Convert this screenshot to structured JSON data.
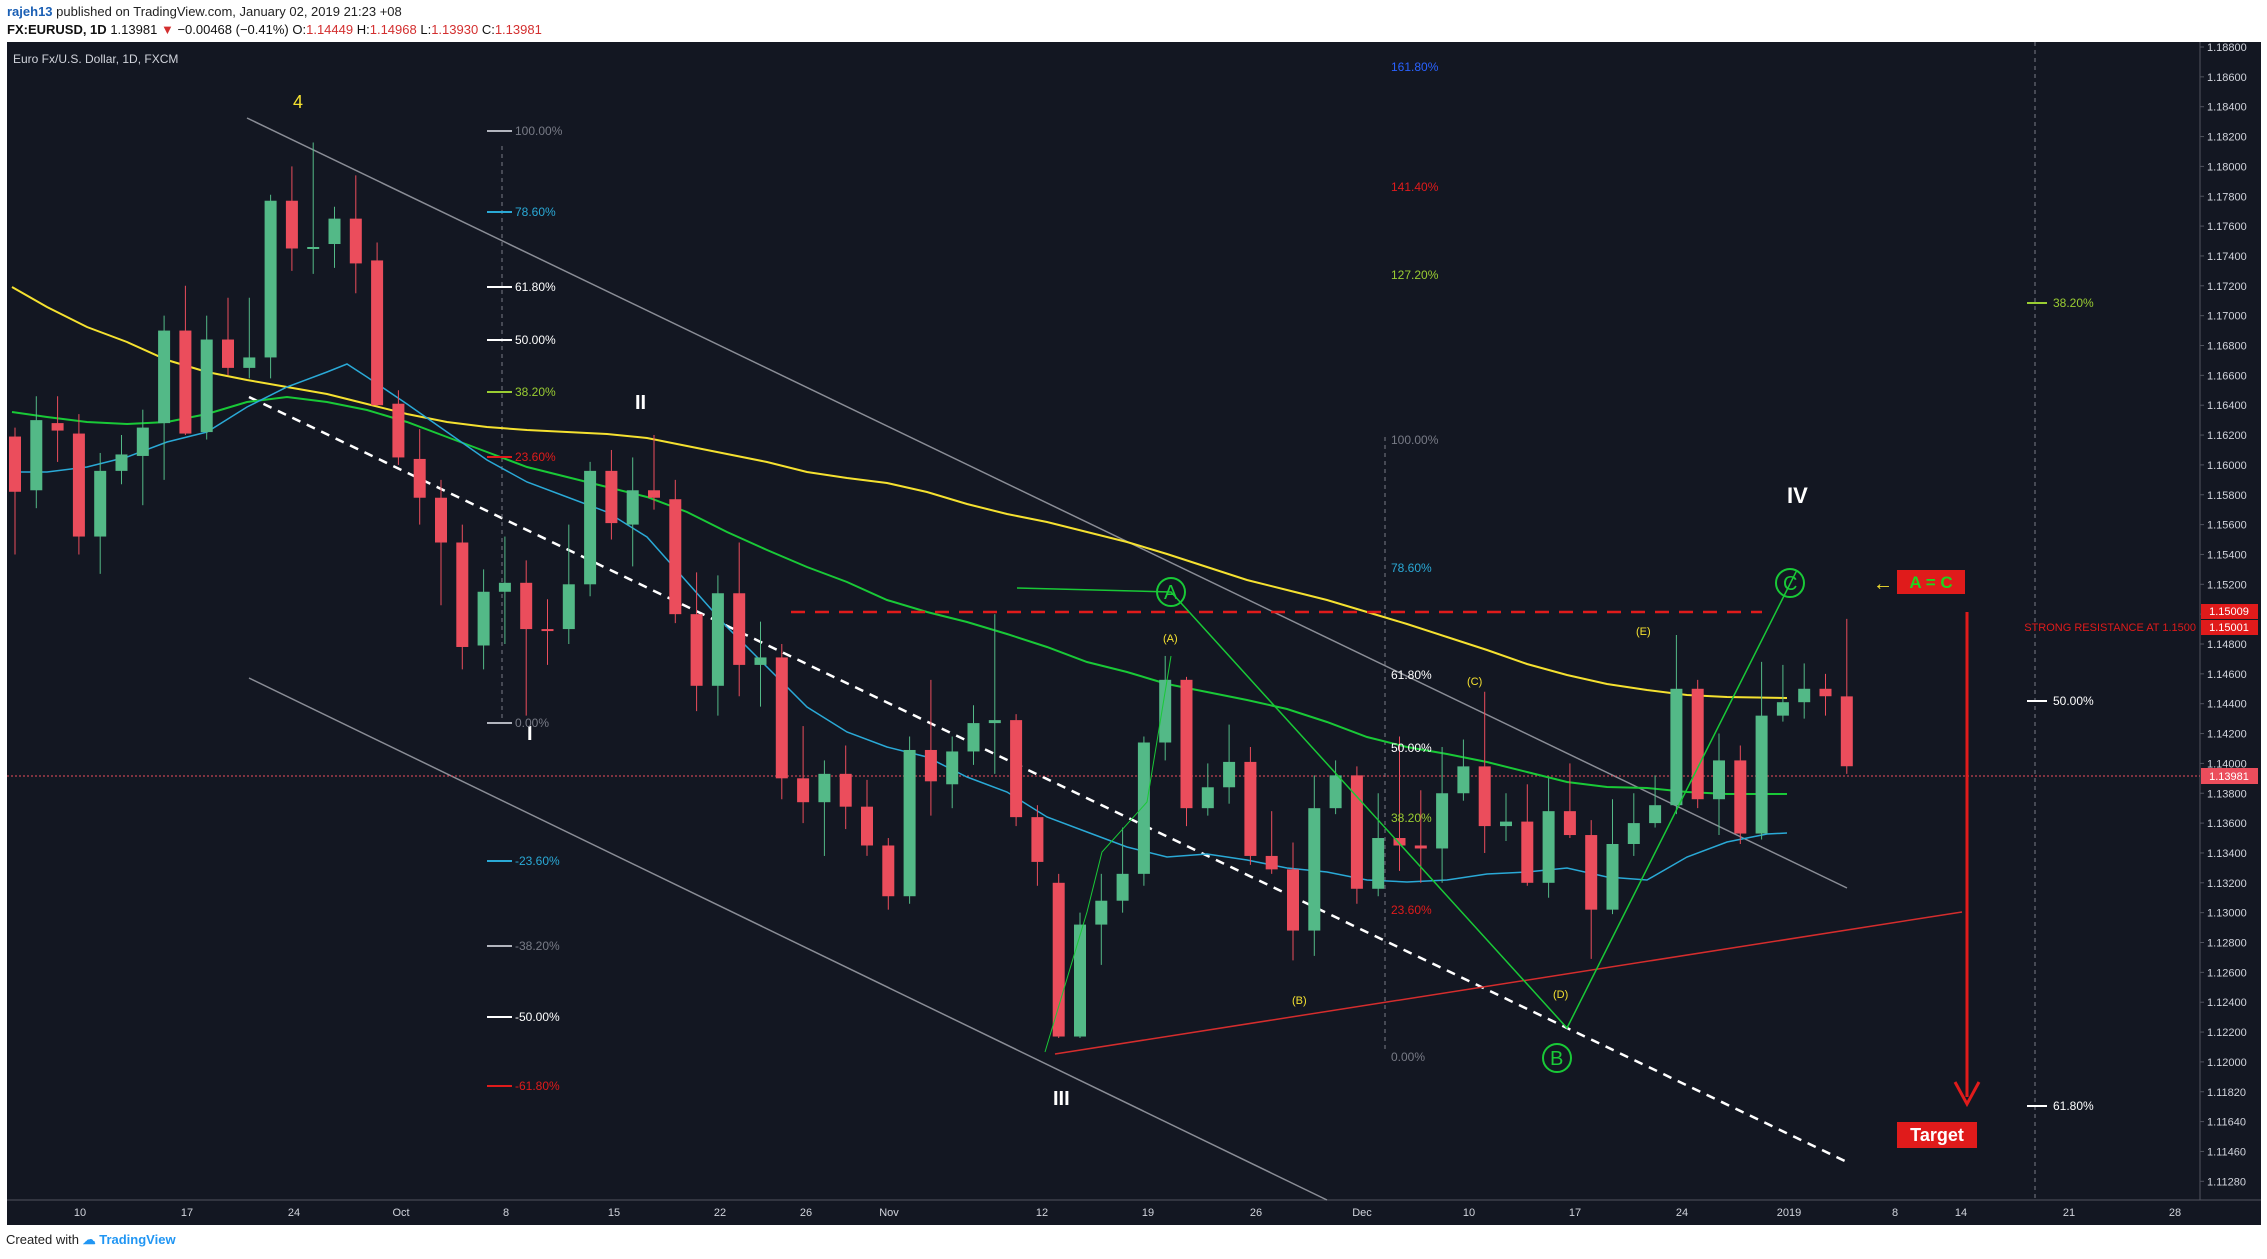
{
  "header": {
    "author": "rajeh13",
    "published": "published on TradingView.com, January 02, 2019 21:23 +08",
    "symbol": "FX:EURUSD, 1D",
    "price": "1.13981",
    "arrow": "▼",
    "change": "−0.00468 (−0.41%)",
    "o_label": "O:",
    "o": "1.14449",
    "h_label": "H:",
    "h": "1.14968",
    "l_label": "L:",
    "l": "1.13930",
    "c_label": "C:",
    "c": "1.13981"
  },
  "chart": {
    "title": "Euro Fx/U.S. Dollar, 1D, FXCM",
    "price_axis": [
      "1.18800",
      "1.18600",
      "1.18400",
      "1.18200",
      "1.18000",
      "1.17800",
      "1.17600",
      "1.17400",
      "1.17200",
      "1.17000",
      "1.16800",
      "1.16600",
      "1.16400",
      "1.16200",
      "1.16000",
      "1.15800",
      "1.15600",
      "1.15400",
      "1.15200",
      "1.15000",
      "1.14800",
      "1.14600",
      "1.14400",
      "1.14200",
      "1.14000",
      "1.13800",
      "1.13600",
      "1.13400",
      "1.13200",
      "1.13000",
      "1.12800",
      "1.12600",
      "1.12400",
      "1.12200",
      "1.12000",
      "1.11820",
      "1.11640",
      "1.11460",
      "1.11280"
    ],
    "price_tags": {
      "last": "1.13981",
      "res1": "1.15009",
      "res2": "1.15001"
    },
    "date_axis": [
      "10",
      "17",
      "24",
      "Oct",
      "8",
      "15",
      "22",
      "26",
      "Nov",
      "12",
      "19",
      "26",
      "Dec",
      "10",
      "17",
      "24",
      "2019",
      "8",
      "14",
      "21",
      "28"
    ],
    "annotations": {
      "wave_4": "4",
      "wave_I": "I",
      "wave_II": "II",
      "wave_III": "III",
      "wave_IV": "IV",
      "wave_A": "A",
      "wave_B": "B",
      "wave_C": "C",
      "sub_A": "(A)",
      "sub_B": "(B)",
      "sub_C": "(C)",
      "sub_D": "(D)",
      "sub_E": "(E)",
      "a_eq_c": "A = C",
      "a_eq_c_arrow": "←",
      "resistance": "STRONG RESISTANCE AT 1.1500",
      "target": "Target"
    },
    "fib_left": [
      "100.00%",
      "78.60%",
      "61.80%",
      "50.00%",
      "38.20%",
      "23.60%",
      "0.00%",
      "-23.60%",
      "-38.20%",
      "-50.00%",
      "-61.80%"
    ],
    "fib_right": [
      "161.80%",
      "141.40%",
      "127.20%",
      "100.00%",
      "78.60%",
      "61.80%",
      "50.00%",
      "38.20%",
      "23.60%",
      "0.00%"
    ],
    "fib_far": [
      "38.20%",
      "50.00%",
      "61.80%"
    ],
    "colors": {
      "background": "#131722",
      "up": "#53b987",
      "down": "#eb4d5c",
      "ma_yellow": "#f5e130",
      "ma_green": "#19c937",
      "ma_blue": "#2aa9d6",
      "red_line": "#e01b1b",
      "target_bg": "#e01b1b",
      "ac_bg": "#e01b1b",
      "ac_text": "#1ed41e"
    }
  },
  "chart_data": {
    "type": "candlestick",
    "title": "Euro Fx/U.S. Dollar, 1D, FXCM",
    "ylim": [
      1.1128,
      1.189
    ],
    "candles": [
      {
        "x": "2018-09-04",
        "o": 1.1619,
        "h": 1.1625,
        "l": 1.154,
        "c": 1.1582
      },
      {
        "x": "2018-09-05",
        "o": 1.1583,
        "h": 1.1646,
        "l": 1.1571,
        "c": 1.163
      },
      {
        "x": "2018-09-06",
        "o": 1.1628,
        "h": 1.1646,
        "l": 1.1602,
        "c": 1.1623
      },
      {
        "x": "2018-09-07",
        "o": 1.1621,
        "h": 1.1634,
        "l": 1.154,
        "c": 1.1552
      },
      {
        "x": "2018-09-10",
        "o": 1.1552,
        "h": 1.1608,
        "l": 1.1527,
        "c": 1.1596
      },
      {
        "x": "2018-09-11",
        "o": 1.1596,
        "h": 1.162,
        "l": 1.1587,
        "c": 1.1607
      },
      {
        "x": "2018-09-12",
        "o": 1.1606,
        "h": 1.1637,
        "l": 1.1573,
        "c": 1.1625
      },
      {
        "x": "2018-09-13",
        "o": 1.1628,
        "h": 1.17,
        "l": 1.159,
        "c": 1.169
      },
      {
        "x": "2018-09-14",
        "o": 1.169,
        "h": 1.172,
        "l": 1.162,
        "c": 1.1621
      },
      {
        "x": "2018-09-17",
        "o": 1.1622,
        "h": 1.17,
        "l": 1.1617,
        "c": 1.1684
      },
      {
        "x": "2018-09-18",
        "o": 1.1684,
        "h": 1.1712,
        "l": 1.166,
        "c": 1.1665
      },
      {
        "x": "2018-09-19",
        "o": 1.1665,
        "h": 1.1712,
        "l": 1.1658,
        "c": 1.1672
      },
      {
        "x": "2018-09-20",
        "o": 1.1672,
        "h": 1.1781,
        "l": 1.1658,
        "c": 1.1777
      },
      {
        "x": "2018-09-21",
        "o": 1.1777,
        "h": 1.18,
        "l": 1.173,
        "c": 1.1745
      },
      {
        "x": "2018-09-24",
        "o": 1.1745,
        "h": 1.1816,
        "l": 1.1728,
        "c": 1.1746
      },
      {
        "x": "2018-09-25",
        "o": 1.1748,
        "h": 1.1773,
        "l": 1.1732,
        "c": 1.1765
      },
      {
        "x": "2018-09-26",
        "o": 1.1765,
        "h": 1.1794,
        "l": 1.1715,
        "c": 1.1735
      },
      {
        "x": "2018-09-27",
        "o": 1.1737,
        "h": 1.1749,
        "l": 1.164,
        "c": 1.164
      },
      {
        "x": "2018-09-28",
        "o": 1.1641,
        "h": 1.165,
        "l": 1.16,
        "c": 1.1605
      },
      {
        "x": "2018-10-01",
        "o": 1.1604,
        "h": 1.1624,
        "l": 1.156,
        "c": 1.1578
      },
      {
        "x": "2018-10-02",
        "o": 1.1578,
        "h": 1.159,
        "l": 1.1506,
        "c": 1.1548
      },
      {
        "x": "2018-10-03",
        "o": 1.1548,
        "h": 1.156,
        "l": 1.1463,
        "c": 1.1478
      },
      {
        "x": "2018-10-04",
        "o": 1.1479,
        "h": 1.153,
        "l": 1.1463,
        "c": 1.1515
      },
      {
        "x": "2018-10-05",
        "o": 1.1515,
        "h": 1.1552,
        "l": 1.148,
        "c": 1.1521
      },
      {
        "x": "2018-10-08",
        "o": 1.1521,
        "h": 1.1536,
        "l": 1.1432,
        "c": 1.149
      },
      {
        "x": "2018-10-09",
        "o": 1.149,
        "h": 1.151,
        "l": 1.1466,
        "c": 1.1489
      },
      {
        "x": "2018-10-10",
        "o": 1.149,
        "h": 1.156,
        "l": 1.148,
        "c": 1.152
      },
      {
        "x": "2018-10-11",
        "o": 1.152,
        "h": 1.1602,
        "l": 1.1512,
        "c": 1.1596
      },
      {
        "x": "2018-10-12",
        "o": 1.1596,
        "h": 1.161,
        "l": 1.155,
        "c": 1.1561
      },
      {
        "x": "2018-10-15",
        "o": 1.156,
        "h": 1.1605,
        "l": 1.1532,
        "c": 1.1583
      },
      {
        "x": "2018-10-16",
        "o": 1.1583,
        "h": 1.162,
        "l": 1.157,
        "c": 1.1578
      },
      {
        "x": "2018-10-17",
        "o": 1.1577,
        "h": 1.159,
        "l": 1.1494,
        "c": 1.15
      },
      {
        "x": "2018-10-18",
        "o": 1.15,
        "h": 1.1528,
        "l": 1.1435,
        "c": 1.1452
      },
      {
        "x": "2018-10-19",
        "o": 1.1452,
        "h": 1.1526,
        "l": 1.1432,
        "c": 1.1514
      },
      {
        "x": "2018-10-22",
        "o": 1.1514,
        "h": 1.1548,
        "l": 1.1445,
        "c": 1.1466
      },
      {
        "x": "2018-10-23",
        "o": 1.1466,
        "h": 1.1495,
        "l": 1.1438,
        "c": 1.1471
      },
      {
        "x": "2018-10-24",
        "o": 1.1471,
        "h": 1.148,
        "l": 1.1376,
        "c": 1.139
      },
      {
        "x": "2018-10-25",
        "o": 1.139,
        "h": 1.1425,
        "l": 1.136,
        "c": 1.1374
      },
      {
        "x": "2018-10-26",
        "o": 1.1374,
        "h": 1.1402,
        "l": 1.1338,
        "c": 1.1393
      },
      {
        "x": "2018-10-29",
        "o": 1.1393,
        "h": 1.1412,
        "l": 1.1356,
        "c": 1.1371
      },
      {
        "x": "2018-10-30",
        "o": 1.1371,
        "h": 1.1389,
        "l": 1.1338,
        "c": 1.1345
      },
      {
        "x": "2018-10-31",
        "o": 1.1345,
        "h": 1.135,
        "l": 1.1302,
        "c": 1.1311
      },
      {
        "x": "2018-11-01",
        "o": 1.1311,
        "h": 1.1418,
        "l": 1.1306,
        "c": 1.1409
      },
      {
        "x": "2018-11-02",
        "o": 1.1409,
        "h": 1.1456,
        "l": 1.1365,
        "c": 1.1388
      },
      {
        "x": "2018-11-05",
        "o": 1.1386,
        "h": 1.1418,
        "l": 1.137,
        "c": 1.1408
      },
      {
        "x": "2018-11-06",
        "o": 1.1408,
        "h": 1.1439,
        "l": 1.1399,
        "c": 1.1427
      },
      {
        "x": "2018-11-07",
        "o": 1.1427,
        "h": 1.15,
        "l": 1.1393,
        "c": 1.1429
      },
      {
        "x": "2018-11-08",
        "o": 1.1429,
        "h": 1.1433,
        "l": 1.1358,
        "c": 1.1364
      },
      {
        "x": "2018-11-09",
        "o": 1.1364,
        "h": 1.1372,
        "l": 1.1318,
        "c": 1.1334
      },
      {
        "x": "2018-11-12",
        "o": 1.132,
        "h": 1.1326,
        "l": 1.1216,
        "c": 1.1217
      },
      {
        "x": "2018-11-13",
        "o": 1.1217,
        "h": 1.13,
        "l": 1.1216,
        "c": 1.1292
      },
      {
        "x": "2018-11-14",
        "o": 1.1292,
        "h": 1.1326,
        "l": 1.1265,
        "c": 1.1308
      },
      {
        "x": "2018-11-15",
        "o": 1.1308,
        "h": 1.1357,
        "l": 1.13,
        "c": 1.1326
      },
      {
        "x": "2018-11-16",
        "o": 1.1326,
        "h": 1.1418,
        "l": 1.1318,
        "c": 1.1414
      },
      {
        "x": "2018-11-19",
        "o": 1.1414,
        "h": 1.1472,
        "l": 1.1402,
        "c": 1.1456
      },
      {
        "x": "2018-11-20",
        "o": 1.1456,
        "h": 1.1458,
        "l": 1.1358,
        "c": 1.137
      },
      {
        "x": "2018-11-21",
        "o": 1.137,
        "h": 1.14,
        "l": 1.1365,
        "c": 1.1384
      },
      {
        "x": "2018-11-22",
        "o": 1.1384,
        "h": 1.1426,
        "l": 1.1373,
        "c": 1.1401
      },
      {
        "x": "2018-11-23",
        "o": 1.1401,
        "h": 1.1411,
        "l": 1.1332,
        "c": 1.1338
      },
      {
        "x": "2018-11-26",
        "o": 1.1338,
        "h": 1.1368,
        "l": 1.1326,
        "c": 1.1329
      },
      {
        "x": "2018-11-27",
        "o": 1.1329,
        "h": 1.1347,
        "l": 1.1268,
        "c": 1.1288
      },
      {
        "x": "2018-11-28",
        "o": 1.1288,
        "h": 1.1392,
        "l": 1.1271,
        "c": 1.137
      },
      {
        "x": "2018-11-29",
        "o": 1.137,
        "h": 1.1402,
        "l": 1.1366,
        "c": 1.1392
      },
      {
        "x": "2018-11-30",
        "o": 1.1392,
        "h": 1.1398,
        "l": 1.1306,
        "c": 1.1316
      },
      {
        "x": "2018-12-03",
        "o": 1.1316,
        "h": 1.138,
        "l": 1.1311,
        "c": 1.135
      },
      {
        "x": "2018-12-04",
        "o": 1.135,
        "h": 1.1418,
        "l": 1.1328,
        "c": 1.1345
      },
      {
        "x": "2018-12-05",
        "o": 1.1345,
        "h": 1.1382,
        "l": 1.132,
        "c": 1.1343
      },
      {
        "x": "2018-12-06",
        "o": 1.1343,
        "h": 1.1411,
        "l": 1.132,
        "c": 1.138
      },
      {
        "x": "2018-12-07",
        "o": 1.138,
        "h": 1.1416,
        "l": 1.1375,
        "c": 1.1398
      },
      {
        "x": "2018-12-10",
        "o": 1.1398,
        "h": 1.1448,
        "l": 1.134,
        "c": 1.1358
      },
      {
        "x": "2018-12-11",
        "o": 1.1358,
        "h": 1.138,
        "l": 1.1348,
        "c": 1.1361
      },
      {
        "x": "2018-12-12",
        "o": 1.1361,
        "h": 1.1386,
        "l": 1.1318,
        "c": 1.132
      },
      {
        "x": "2018-12-13",
        "o": 1.132,
        "h": 1.139,
        "l": 1.131,
        "c": 1.1368
      },
      {
        "x": "2018-12-14",
        "o": 1.1368,
        "h": 1.14,
        "l": 1.135,
        "c": 1.1352
      },
      {
        "x": "2018-12-17",
        "o": 1.1352,
        "h": 1.1362,
        "l": 1.1269,
        "c": 1.1302
      },
      {
        "x": "2018-12-18",
        "o": 1.1302,
        "h": 1.1376,
        "l": 1.1299,
        "c": 1.1346
      },
      {
        "x": "2018-12-19",
        "o": 1.1346,
        "h": 1.138,
        "l": 1.1338,
        "c": 1.136
      },
      {
        "x": "2018-12-20",
        "o": 1.136,
        "h": 1.1392,
        "l": 1.1357,
        "c": 1.1372
      },
      {
        "x": "2018-12-21",
        "o": 1.1372,
        "h": 1.1486,
        "l": 1.1366,
        "c": 1.145
      },
      {
        "x": "2018-12-24",
        "o": 1.145,
        "h": 1.1456,
        "l": 1.137,
        "c": 1.1376
      },
      {
        "x": "2018-12-25",
        "o": 1.1376,
        "h": 1.142,
        "l": 1.1352,
        "c": 1.1402
      },
      {
        "x": "2018-12-26",
        "o": 1.1402,
        "h": 1.1412,
        "l": 1.1346,
        "c": 1.1353
      },
      {
        "x": "2018-12-27",
        "o": 1.1353,
        "h": 1.1468,
        "l": 1.1349,
        "c": 1.1432
      },
      {
        "x": "2018-12-28",
        "o": 1.1432,
        "h": 1.1466,
        "l": 1.1428,
        "c": 1.1441
      },
      {
        "x": "2018-12-31",
        "o": 1.1441,
        "h": 1.1467,
        "l": 1.143,
        "c": 1.145
      },
      {
        "x": "2019-01-01",
        "o": 1.145,
        "h": 1.146,
        "l": 1.1432,
        "c": 1.1445
      },
      {
        "x": "2019-01-02",
        "o": 1.14449,
        "h": 1.14968,
        "l": 1.1393,
        "c": 1.13981
      }
    ]
  }
}
